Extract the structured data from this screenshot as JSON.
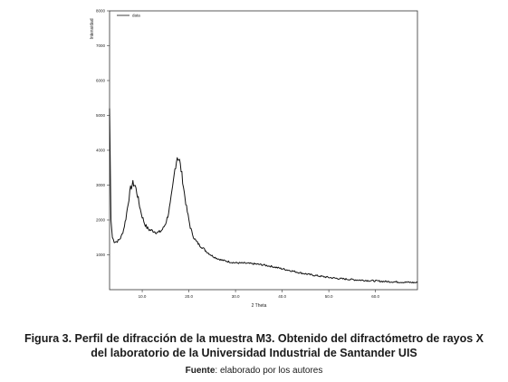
{
  "chart_data": {
    "type": "line",
    "ylabel": "Intensidad",
    "xlabel": "2 Theta",
    "legend": [
      "data"
    ],
    "legend_position": "top-left",
    "xlim": [
      3,
      69
    ],
    "ylim": [
      0,
      8000
    ],
    "x_ticks": [
      10,
      20,
      30,
      40,
      50,
      60
    ],
    "x_tick_labels": [
      "10.0",
      "20.0",
      "30.0",
      "40.0",
      "50.0",
      "60.0"
    ],
    "y_ticks": [
      1000,
      2000,
      3000,
      4000,
      5000,
      6000,
      7000,
      8000
    ],
    "y_tick_labels": [
      "1000",
      "2000",
      "3000",
      "4000",
      "5000",
      "6000",
      "7000",
      "8000"
    ],
    "grid": false,
    "series": [
      {
        "name": "data",
        "x": [
          3.0,
          3.3,
          3.6,
          4.0,
          4.5,
          5.0,
          5.5,
          6.0,
          6.5,
          7.0,
          7.5,
          8.0,
          8.5,
          9.0,
          9.3,
          9.6,
          10.0,
          10.5,
          11.0,
          11.5,
          12.0,
          12.5,
          13.0,
          13.5,
          14.0,
          14.5,
          15.0,
          15.5,
          16.0,
          16.5,
          17.0,
          17.5,
          18.0,
          18.5,
          19.0,
          19.5,
          20.0,
          20.3,
          20.6,
          21.0,
          21.5,
          22.0,
          22.5,
          23.0,
          23.5,
          24.0,
          24.5,
          25.0,
          26.0,
          27.0,
          28.0,
          29.0,
          30.0,
          32.0,
          34.0,
          36.0,
          38.0,
          40.0,
          42.0,
          44.0,
          46.0,
          48.0,
          50.0,
          52.0,
          54.0,
          56.0,
          58.0,
          60.0,
          62.0,
          64.0,
          66.0,
          68.0,
          69.0
        ],
        "y": [
          5200,
          2000,
          1500,
          1380,
          1380,
          1420,
          1520,
          1720,
          2050,
          2500,
          2900,
          3050,
          2980,
          2700,
          2500,
          2300,
          2100,
          1900,
          1780,
          1720,
          1700,
          1680,
          1650,
          1640,
          1680,
          1760,
          1900,
          2120,
          2450,
          2900,
          3450,
          3820,
          3700,
          3300,
          2800,
          2350,
          2000,
          1800,
          1660,
          1520,
          1400,
          1320,
          1250,
          1200,
          1130,
          1070,
          1020,
          970,
          900,
          850,
          820,
          790,
          770,
          760,
          740,
          710,
          660,
          600,
          540,
          480,
          430,
          390,
          350,
          320,
          300,
          280,
          265,
          250,
          235,
          225,
          215,
          205,
          200
        ]
      }
    ]
  },
  "caption": {
    "line1": "Figura 3. Perfil de difracción de la muestra M3. Obtenido del difractómetro de rayos X",
    "line2": "del laboratorio de la Universidad Industrial de Santander UIS"
  },
  "source": {
    "label": "Fuente",
    "text": ": elaborado por los autores"
  }
}
